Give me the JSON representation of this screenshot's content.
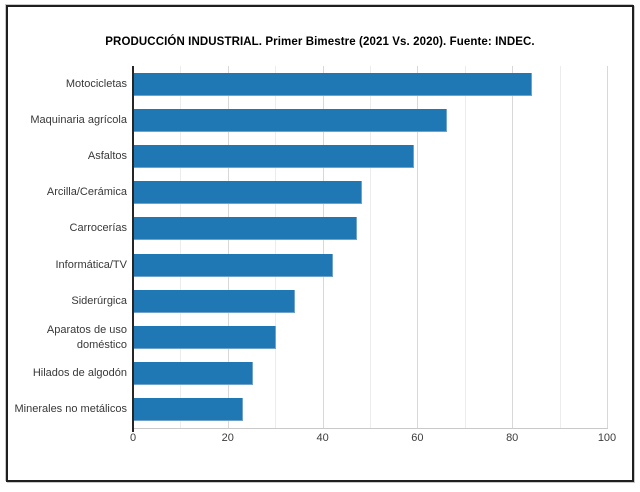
{
  "title": "PRODUCCIÓN INDUSTRIAL. Primer Bimestre (2021 Vs. 2020). Fuente: INDEC.",
  "chart_data": {
    "type": "bar",
    "orientation": "horizontal",
    "title": "PRODUCCIÓN INDUSTRIAL. Primer Bimestre (2021 Vs. 2020). Fuente: INDEC.",
    "categories": [
      "Motocicletas",
      "Maquinaria agrícola",
      "Asfaltos",
      "Arcilla/Cerámica",
      "Carrocerías",
      "Informática/TV",
      "Siderúrgica",
      "Aparatos de uso doméstico",
      "Hilados de algodón",
      "Minerales no metálicos"
    ],
    "values": [
      84,
      66,
      59,
      48,
      47,
      42,
      34,
      30,
      25,
      23
    ],
    "xlabel": "",
    "ylabel": "",
    "xlim": [
      0,
      100
    ],
    "x_tick_labels": [
      0,
      20,
      40,
      60,
      80,
      100
    ],
    "gridlines_every": 10,
    "grid": true,
    "legend": "none",
    "colors": {
      "bar": "#1F77B4",
      "y_axis_line": "#262626",
      "x_axis_line": "#c9c9c9",
      "gridline_major": "#d8d8d8",
      "gridline_minor": "#ececec",
      "title_text": "#000000",
      "label_text": "#383838",
      "frame_border": "#1f1f1f",
      "background": "#ffffff"
    }
  }
}
